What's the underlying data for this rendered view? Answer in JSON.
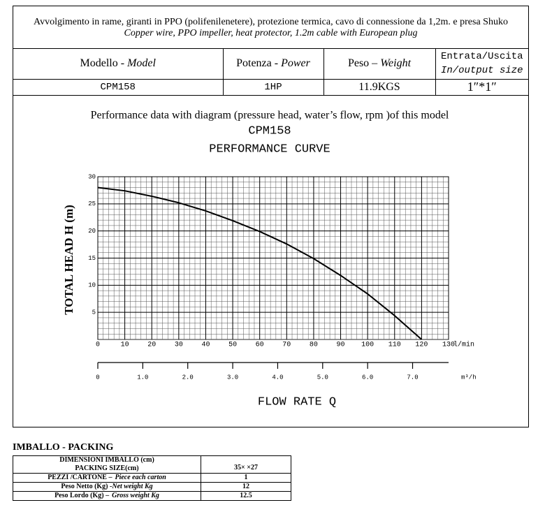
{
  "header": {
    "description": [
      "Avvolgimento in rame, giranti in PPO (polifenilenetere), protezione termica, cavo di connessione da 1,2m. e presa Shuko",
      "Copper wire, PPO impeller, heat protector, 1.2m cable with European plug"
    ],
    "columns": [
      {
        "it": "Modello -",
        "en": "Model"
      },
      {
        "it": "Potenza -",
        "en": "Power"
      },
      {
        "it": "Peso –",
        "en": "Weight"
      },
      {
        "it": "Entrata/Uscita",
        "en": "In/output size"
      }
    ],
    "row": [
      "CPM158",
      "1HP",
      "11.9KGS",
      "1″*1″"
    ]
  },
  "chart_data": {
    "type": "line",
    "caption": "Performance  data with diagram (pressure head, water’s flow, rpm )of this model",
    "title": "CPM158",
    "subtitle": "PERFORMANCE CURVE",
    "ylabel": "TOTAL HEAD  H (m)",
    "xlabel": "FLOW RATE Q",
    "x": [
      0,
      10,
      20,
      30,
      40,
      50,
      60,
      70,
      80,
      90,
      100,
      110,
      120
    ],
    "values": [
      28,
      27.4,
      26.4,
      25.2,
      23.7,
      21.9,
      19.9,
      17.6,
      14.9,
      11.8,
      8.4,
      4.4,
      0
    ],
    "color": "#000000",
    "xlim": [
      0,
      130
    ],
    "xticks": [
      0,
      10,
      20,
      30,
      40,
      50,
      60,
      70,
      80,
      90,
      100,
      110,
      120,
      130
    ],
    "x_unit": "l/min",
    "ylim": [
      0,
      30
    ],
    "yticks": [
      5,
      10,
      15,
      20,
      25,
      30
    ],
    "x2lim": [
      0,
      7.8
    ],
    "x2ticks": [
      0,
      {
        "value": 1,
        "label": "1.0"
      },
      {
        "value": 2,
        "label": "2.0"
      },
      {
        "value": 3,
        "label": "3.0"
      },
      {
        "value": 4,
        "label": "4.0"
      },
      {
        "value": 5,
        "label": "5.0"
      },
      {
        "value": 6,
        "label": "6.0"
      },
      {
        "value": 7,
        "label": "7.0"
      }
    ],
    "x2_unit": "m³/h",
    "grid": true,
    "x_minor_step": 2,
    "y_minor_step": 1
  },
  "packing": {
    "title": "IMBALLO - PACKING",
    "rows": [
      {
        "label": [
          "DIMENSIONI IMBALLO (cm)",
          "PACKING SIZE(cm)"
        ],
        "value": "35×  ×27"
      },
      {
        "label": {
          "it": "PEZZI /CARTONE –",
          "en": "Piece each carton"
        },
        "value": 1
      },
      {
        "label": {
          "it": "Peso Netto (Kg) -",
          "en": "Net  weight Kg"
        },
        "value": 12
      },
      {
        "label": {
          "it": "Peso Lordo (Kg) –",
          "en": "Gross weight Kg"
        },
        "value": 12.5
      }
    ]
  }
}
